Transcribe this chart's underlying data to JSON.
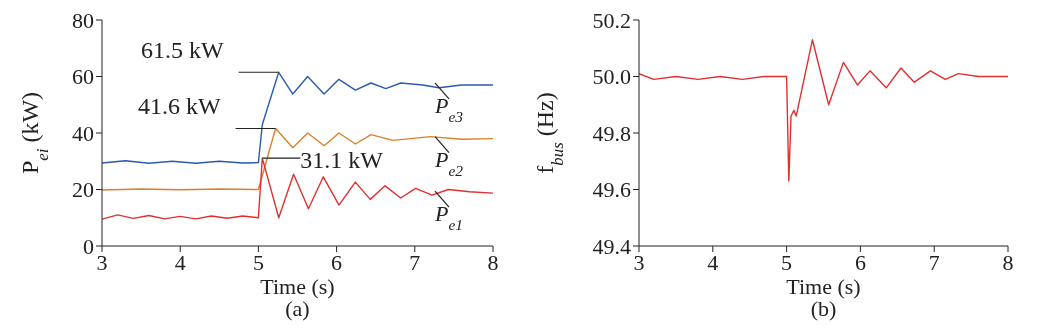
{
  "chart_data": [
    {
      "type": "line",
      "xlabel": "Time (s)",
      "ylabel": "P$_{ei}$ (kW)",
      "xlim": [
        3,
        8
      ],
      "xticks": [
        3,
        4,
        5,
        6,
        7,
        8
      ],
      "ylim": [
        0,
        80
      ],
      "yticks": [
        0,
        20,
        40,
        60,
        80
      ],
      "grid": false,
      "legend": false,
      "series": [
        {
          "name": "P$_{e3}$",
          "color": "#2a5caa",
          "x": [
            3.0,
            3.3,
            3.6,
            3.9,
            4.2,
            4.5,
            4.8,
            5.0,
            5.05,
            5.26,
            5.44,
            5.63,
            5.84,
            6.03,
            6.24,
            6.44,
            6.63,
            6.82,
            7.1,
            7.31,
            7.6,
            8.0
          ],
          "values": [
            29.4,
            30.2,
            29.3,
            30,
            29.3,
            30,
            29.4,
            29.5,
            43,
            61.5,
            53.8,
            60,
            53.8,
            59,
            55.2,
            57.7,
            55.7,
            57.7,
            57,
            56,
            57,
            57
          ]
        },
        {
          "name": "P$_{e2}$",
          "color": "#d9822b",
          "x": [
            3.0,
            3.5,
            4.0,
            4.5,
            5.0,
            5.22,
            5.44,
            5.63,
            5.84,
            6.03,
            6.24,
            6.44,
            6.72,
            7.2,
            7.6,
            8.0
          ],
          "values": [
            19.8,
            20.2,
            19.9,
            20.2,
            20,
            41.6,
            34.8,
            40,
            35.5,
            40,
            36.1,
            39.4,
            37.4,
            38.7,
            37.8,
            38
          ]
        },
        {
          "name": "P$_{e1}$",
          "color": "#e03030",
          "x": [
            3.0,
            3.2,
            3.4,
            3.6,
            3.8,
            4.0,
            4.2,
            4.4,
            4.6,
            4.8,
            5.0,
            5.05,
            5.26,
            5.45,
            5.64,
            5.83,
            6.03,
            6.24,
            6.43,
            6.62,
            6.82,
            7.01,
            7.22,
            7.43,
            7.7,
            8.0
          ],
          "values": [
            9.5,
            11,
            9.8,
            10.8,
            9.6,
            10.5,
            9.6,
            10.6,
            9.8,
            10.6,
            10,
            31.1,
            10,
            25.4,
            13.2,
            24.5,
            14.5,
            22.6,
            16.5,
            21.3,
            17,
            20.4,
            18,
            20,
            19.2,
            18.7
          ]
        }
      ],
      "annotations": [
        {
          "text": "61.5 kW",
          "x": 5.26,
          "y": 61.5
        },
        {
          "text": "41.6 kW",
          "x": 5.22,
          "y": 41.6
        },
        {
          "text": "31.1 kW",
          "x": 5.05,
          "y": 31.1
        },
        "(a)"
      ]
    },
    {
      "type": "line",
      "xlabel": "Time (s)",
      "ylabel": "f$_{bus}$ (Hz)",
      "xlim": [
        3,
        8
      ],
      "xticks": [
        3,
        4,
        5,
        6,
        7,
        8
      ],
      "ylim": [
        49.4,
        50.2
      ],
      "yticks": [
        {
          "value": 49.4,
          "label": "49.4"
        },
        {
          "value": 49.6,
          "label": "49.6"
        },
        {
          "value": 49.8,
          "label": "49.8"
        },
        {
          "value": 50.0,
          "label": "50.0"
        },
        {
          "value": 50.2,
          "label": "50.2"
        }
      ],
      "grid": false,
      "legend": false,
      "series": [
        {
          "color": "#e03030",
          "x": [
            3.0,
            3.2,
            3.5,
            3.8,
            4.1,
            4.4,
            4.7,
            5.0,
            5.03,
            5.06,
            5.1,
            5.13,
            5.35,
            5.57,
            5.77,
            5.96,
            6.13,
            6.35,
            6.55,
            6.73,
            6.95,
            7.15,
            7.33,
            7.6,
            8.0
          ],
          "values": [
            50.01,
            49.99,
            50.0,
            49.99,
            50.0,
            49.99,
            50.0,
            50.0,
            49.63,
            49.86,
            49.88,
            49.86,
            50.13,
            49.9,
            50.05,
            49.97,
            50.02,
            49.96,
            50.03,
            49.98,
            50.02,
            49.99,
            50.01,
            50.0,
            50.0
          ]
        }
      ],
      "annotations": [
        "(b)"
      ]
    }
  ]
}
